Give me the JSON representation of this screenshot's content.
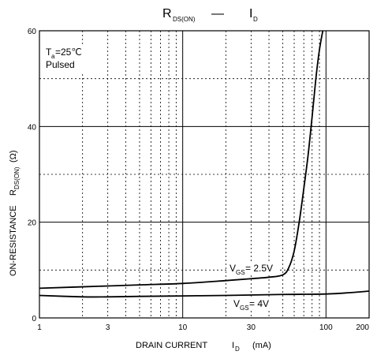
{
  "chart_data": {
    "type": "line",
    "title": {
      "main": "R",
      "main_sub": "DS(ON)",
      "dash": "—",
      "second": "I",
      "second_sub": "D"
    },
    "xlabel": {
      "text": "DRAIN CURRENT",
      "symbol": "I",
      "symbol_sub": "D",
      "unit": "(mA)"
    },
    "ylabel": {
      "text": "ON-RESISTANCE",
      "symbol": "R",
      "symbol_sub": "DS(ON)",
      "unit": "(Ω)"
    },
    "x_scale": "log",
    "xlim": [
      1,
      200
    ],
    "ylim": [
      0,
      60
    ],
    "x_ticks": [
      1,
      3,
      10,
      30,
      100,
      200
    ],
    "x_tick_labels": [
      "1",
      "3",
      "10",
      "30",
      "100",
      "200"
    ],
    "y_ticks": [
      0,
      20,
      40,
      60
    ],
    "y_tick_labels": [
      "0",
      "20",
      "40",
      "60"
    ],
    "grid": true,
    "annotations": {
      "temp_prefix": "T",
      "temp_sub": "a",
      "temp_value": "=25℃",
      "pulsed": "Pulsed"
    },
    "series": [
      {
        "label_prefix": "V",
        "label_sub": "GS",
        "label_value": "= 2.5V",
        "x": [
          1,
          2,
          5,
          10,
          20,
          30,
          40,
          50,
          55,
          60,
          65,
          70,
          75,
          80,
          85,
          90,
          95
        ],
        "y": [
          6.2,
          6.5,
          6.9,
          7.2,
          7.8,
          8.2,
          8.5,
          9.0,
          10.5,
          14,
          20,
          27,
          34,
          42,
          50,
          56,
          61
        ]
      },
      {
        "label_prefix": "V",
        "label_sub": "GS",
        "label_value": "= 4V",
        "x": [
          1,
          2,
          3,
          5,
          10,
          20,
          50,
          100,
          150,
          200
        ],
        "y": [
          4.7,
          4.4,
          4.4,
          4.5,
          4.6,
          4.7,
          4.9,
          5.0,
          5.3,
          5.6
        ]
      }
    ]
  }
}
